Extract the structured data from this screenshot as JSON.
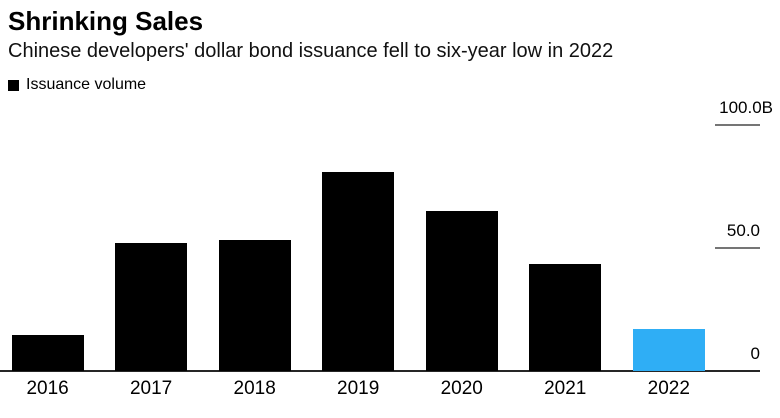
{
  "header": {
    "title": "Shrinking Sales",
    "subtitle": "Chinese developers' dollar bond issuance fell to six-year low in 2022"
  },
  "legend": {
    "label": "Issuance volume",
    "swatch_color": "#000000"
  },
  "chart_data": {
    "type": "bar",
    "title": "Shrinking Sales",
    "subtitle": "Chinese developers' dollar bond issuance fell to six-year low in 2022",
    "categories": [
      "2016",
      "2017",
      "2018",
      "2019",
      "2020",
      "2021",
      "2022"
    ],
    "series": [
      {
        "name": "Issuance volume",
        "values": [
          14.8,
          52.0,
          53.3,
          81.0,
          65.0,
          43.5,
          17.0
        ]
      }
    ],
    "unit": "billions of dollars",
    "ylim": [
      0,
      100
    ],
    "yticks": [
      {
        "value": 100,
        "label": "100.0B"
      },
      {
        "value": 50,
        "label": "50.0"
      },
      {
        "value": 0,
        "label": "0"
      }
    ],
    "y_axis_side": "right",
    "legend_position": "top-left",
    "grid": false,
    "bar_color": "#000000",
    "highlight_category": "2022",
    "highlight_color": "#2FAEF5"
  }
}
